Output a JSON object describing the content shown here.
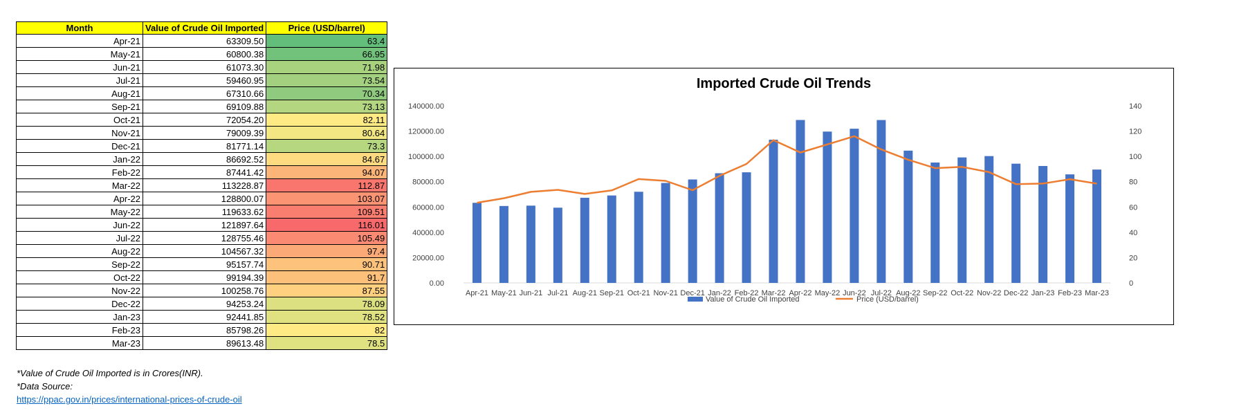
{
  "table": {
    "headers": [
      "Month",
      "Value of Crude Oil Imported",
      "Price (USD/barrel)"
    ],
    "rows": [
      {
        "month": "Apr-21",
        "value": "63309.50",
        "price": "63.4",
        "price_color": "#63be7b"
      },
      {
        "month": "May-21",
        "value": "60800.38",
        "price": "66.95",
        "price_color": "#72c27c"
      },
      {
        "month": "Jun-21",
        "value": "61073.30",
        "price": "71.98",
        "price_color": "#a9d27f"
      },
      {
        "month": "Jul-21",
        "value": "59460.95",
        "price": "73.54",
        "price_color": "#a3d07f"
      },
      {
        "month": "Aug-21",
        "value": "67310.66",
        "price": "70.34",
        "price_color": "#8fca7e"
      },
      {
        "month": "Sep-21",
        "value": "69109.88",
        "price": "73.13",
        "price_color": "#b4d680"
      },
      {
        "month": "Oct-21",
        "value": "72054.20",
        "price": "82.11",
        "price_color": "#ffea84"
      },
      {
        "month": "Nov-21",
        "value": "79009.39",
        "price": "80.64",
        "price_color": "#f2e783"
      },
      {
        "month": "Dec-21",
        "value": "81771.14",
        "price": "73.3",
        "price_color": "#b6d680"
      },
      {
        "month": "Jan-22",
        "value": "86692.52",
        "price": "84.67",
        "price_color": "#fedb81"
      },
      {
        "month": "Feb-22",
        "value": "87441.42",
        "price": "94.07",
        "price_color": "#fcb579"
      },
      {
        "month": "Mar-22",
        "value": "113228.87",
        "price": "112.87",
        "price_color": "#f8766d"
      },
      {
        "month": "Apr-22",
        "value": "128800.07",
        "price": "103.07",
        "price_color": "#fa9473"
      },
      {
        "month": "May-22",
        "value": "119633.62",
        "price": "109.51",
        "price_color": "#f97e6f"
      },
      {
        "month": "Jun-22",
        "value": "121897.64",
        "price": "116.01",
        "price_color": "#f8696b"
      },
      {
        "month": "Jul-22",
        "value": "128755.46",
        "price": "105.49",
        "price_color": "#fa8a71"
      },
      {
        "month": "Aug-22",
        "value": "104567.32",
        "price": "97.4",
        "price_color": "#fbaa77"
      },
      {
        "month": "Sep-22",
        "value": "95157.74",
        "price": "90.71",
        "price_color": "#fdc27c"
      },
      {
        "month": "Oct-22",
        "value": "99194.39",
        "price": "91.7",
        "price_color": "#fdc07b"
      },
      {
        "month": "Nov-22",
        "value": "100258.76",
        "price": "87.55",
        "price_color": "#fed07f"
      },
      {
        "month": "Dec-22",
        "value": "94253.24",
        "price": "78.09",
        "price_color": "#dce081"
      },
      {
        "month": "Jan-23",
        "value": "92441.85",
        "price": "78.52",
        "price_color": "#e0e282"
      },
      {
        "month": "Feb-23",
        "value": "85798.26",
        "price": "82",
        "price_color": "#ffea84"
      },
      {
        "month": "Mar-23",
        "value": "89613.48",
        "price": "78.5",
        "price_color": "#e0e282"
      }
    ]
  },
  "notes": {
    "line1": "*Value of Crude Oil Imported is in Crores(INR).",
    "line2": "*Data Source:",
    "link": "https://ppac.gov.in/prices/international-prices-of-crude-oil"
  },
  "chart_data": {
    "type": "bar",
    "title": "Imported Crude Oil Trends",
    "categories": [
      "Apr-21",
      "May-21",
      "Jun-21",
      "Jul-21",
      "Aug-21",
      "Sep-21",
      "Oct-21",
      "Nov-21",
      "Dec-21",
      "Jan-22",
      "Feb-22",
      "Mar-22",
      "Apr-22",
      "May-22",
      "Jun-22",
      "Jul-22",
      "Aug-22",
      "Sep-22",
      "Oct-22",
      "Nov-22",
      "Dec-22",
      "Jan-23",
      "Feb-23",
      "Mar-23"
    ],
    "series": [
      {
        "name": "Value of Crude Oil Imported",
        "type": "bar",
        "axis": "left",
        "color": "#4472c4",
        "values": [
          63309.5,
          60800.38,
          61073.3,
          59460.95,
          67310.66,
          69109.88,
          72054.2,
          79009.39,
          81771.14,
          86692.52,
          87441.42,
          113228.87,
          128800.07,
          119633.62,
          121897.64,
          128755.46,
          104567.32,
          95157.74,
          99194.39,
          100258.76,
          94253.24,
          92441.85,
          85798.26,
          89613.48
        ]
      },
      {
        "name": "Price (USD/barrel)",
        "type": "line",
        "axis": "right",
        "color": "#ed7d31",
        "values": [
          63.4,
          66.95,
          71.98,
          73.54,
          70.34,
          73.13,
          82.11,
          80.64,
          73.3,
          84.67,
          94.07,
          112.87,
          103.07,
          109.51,
          116.01,
          105.49,
          97.4,
          90.71,
          91.7,
          87.55,
          78.09,
          78.52,
          82,
          78.5
        ]
      }
    ],
    "ylim_left": [
      0,
      140000
    ],
    "yticks_left": [
      "0.00",
      "20000.00",
      "40000.00",
      "60000.00",
      "80000.00",
      "100000.00",
      "120000.00",
      "140000.00"
    ],
    "ylim_right": [
      0,
      140
    ],
    "yticks_right": [
      "0",
      "20",
      "40",
      "60",
      "80",
      "100",
      "120",
      "140"
    ],
    "grid": false,
    "legend": "bottom"
  }
}
